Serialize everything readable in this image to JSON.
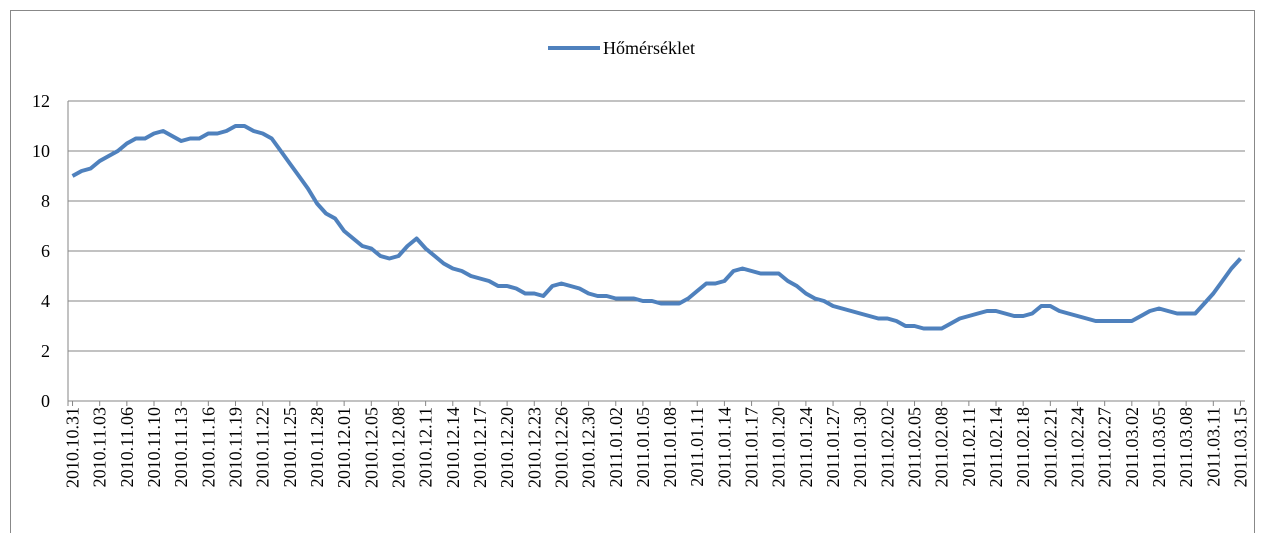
{
  "chart_data": {
    "type": "line",
    "categories": [
      "2010.10.31",
      null,
      null,
      "2010.11.03",
      null,
      null,
      "2010.11.06",
      null,
      null,
      "2010.11.10",
      null,
      null,
      "2010.11.13",
      null,
      null,
      "2010.11.16",
      null,
      null,
      "2010.11.19",
      null,
      null,
      "2010.11.22",
      null,
      null,
      "2010.11.25",
      null,
      null,
      "2010.11.28",
      null,
      null,
      "2010.12.01",
      null,
      null,
      "2010.12.05",
      null,
      null,
      "2010.12.08",
      null,
      null,
      "2010.12.11",
      null,
      null,
      "2010.12.14",
      null,
      null,
      "2010.12.17",
      null,
      null,
      "2010.12.20",
      null,
      null,
      "2010.12.23",
      null,
      null,
      "2010.12.26",
      null,
      null,
      "2010.12.30",
      null,
      null,
      "2011.01.02",
      null,
      null,
      "2011.01.05",
      null,
      null,
      "2011.01.08",
      null,
      null,
      "2011.01.11",
      null,
      null,
      "2011.01.14",
      null,
      null,
      "2011.01.17",
      null,
      null,
      "2011.01.20",
      null,
      null,
      "2011.01.24",
      null,
      null,
      "2011.01.27",
      null,
      null,
      "2011.01.30",
      null,
      null,
      "2011.02.02",
      null,
      null,
      "2011.02.05",
      null,
      null,
      "2011.02.08",
      null,
      null,
      "2011.02.11",
      null,
      null,
      "2011.02.14",
      null,
      null,
      "2011.02.18",
      null,
      null,
      "2011.02.21",
      null,
      null,
      "2011.02.24",
      null,
      null,
      "2011.02.27",
      null,
      null,
      "2011.03.02",
      null,
      null,
      "2011.03.05",
      null,
      null,
      "2011.03.08",
      null,
      null,
      "2011.03.11",
      null,
      null,
      "2011.03.15"
    ],
    "series": [
      {
        "name": "Hőmérséklet",
        "color": "#4f81bd",
        "values": [
          9.0,
          9.2,
          9.3,
          9.6,
          9.8,
          10.0,
          10.3,
          10.5,
          10.5,
          10.7,
          10.8,
          10.6,
          10.4,
          10.5,
          10.5,
          10.7,
          10.7,
          10.8,
          11.0,
          11.0,
          10.8,
          10.7,
          10.5,
          10.0,
          9.5,
          9.0,
          8.5,
          7.9,
          7.5,
          7.3,
          6.8,
          6.5,
          6.2,
          6.1,
          5.8,
          5.7,
          5.8,
          6.2,
          6.5,
          6.1,
          5.8,
          5.5,
          5.3,
          5.2,
          5.0,
          4.9,
          4.8,
          4.6,
          4.6,
          4.5,
          4.3,
          4.3,
          4.2,
          4.6,
          4.7,
          4.6,
          4.5,
          4.3,
          4.2,
          4.2,
          4.1,
          4.1,
          4.1,
          4.0,
          4.0,
          3.9,
          3.9,
          3.9,
          4.1,
          4.4,
          4.7,
          4.7,
          4.8,
          5.2,
          5.3,
          5.2,
          5.1,
          5.1,
          5.1,
          4.8,
          4.6,
          4.3,
          4.1,
          4.0,
          3.8,
          3.7,
          3.6,
          3.5,
          3.4,
          3.3,
          3.3,
          3.2,
          3.0,
          3.0,
          2.9,
          2.9,
          2.9,
          3.1,
          3.3,
          3.4,
          3.5,
          3.6,
          3.6,
          3.5,
          3.4,
          3.4,
          3.5,
          3.8,
          3.8,
          3.6,
          3.5,
          3.4,
          3.3,
          3.2,
          3.2,
          3.2,
          3.2,
          3.2,
          3.4,
          3.6,
          3.7,
          3.6,
          3.5,
          3.5,
          3.5,
          3.9,
          4.3,
          4.8,
          5.3,
          5.7
        ]
      }
    ],
    "ylim": [
      0,
      12
    ],
    "yticks": [
      0,
      2,
      4,
      6,
      8,
      10,
      12
    ],
    "grid": true,
    "legend": "top"
  }
}
